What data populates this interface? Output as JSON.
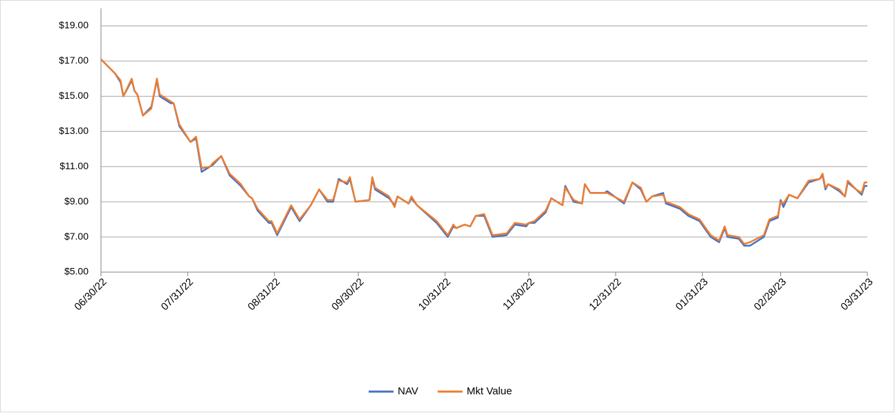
{
  "chart_data": {
    "type": "line",
    "x": [
      "06/30/22",
      "07/05/22",
      "07/07/22",
      "07/08/22",
      "07/11/22",
      "07/12/22",
      "07/13/22",
      "07/15/22",
      "07/18/22",
      "07/20/22",
      "07/21/22",
      "07/25/22",
      "07/26/22",
      "07/28/22",
      "08/01/22",
      "08/03/22",
      "08/05/22",
      "08/08/22",
      "08/09/22",
      "08/12/22",
      "08/15/22",
      "08/19/22",
      "08/22/22",
      "08/23/22",
      "08/25/22",
      "08/29/22",
      "08/30/22",
      "09/01/22",
      "09/06/22",
      "09/09/22",
      "09/13/22",
      "09/16/22",
      "09/19/22",
      "09/21/22",
      "09/23/22",
      "09/26/22",
      "09/27/22",
      "09/29/22",
      "10/04/22",
      "10/05/22",
      "10/06/22",
      "10/11/22",
      "10/13/22",
      "10/14/22",
      "10/18/22",
      "10/19/22",
      "10/21/22",
      "10/28/22",
      "11/01/22",
      "11/03/22",
      "11/04/22",
      "11/07/22",
      "11/09/22",
      "11/11/22",
      "11/14/22",
      "11/17/22",
      "11/22/22",
      "11/25/22",
      "11/29/22",
      "11/30/22",
      "12/02/22",
      "12/06/22",
      "12/08/22",
      "12/12/22",
      "12/13/22",
      "12/16/22",
      "12/19/22",
      "12/20/22",
      "12/22/22",
      "12/27/22",
      "12/28/22",
      "01/03/23",
      "01/06/23",
      "01/09/23",
      "01/11/23",
      "01/13/23",
      "01/17/23",
      "01/18/23",
      "01/23/23",
      "01/26/23",
      "01/30/23",
      "02/03/23",
      "02/06/23",
      "02/08/23",
      "02/09/23",
      "02/13/23",
      "02/15/23",
      "02/17/23",
      "02/22/23",
      "02/24/23",
      "02/27/23",
      "02/28/23",
      "03/01/23",
      "03/03/23",
      "03/06/23",
      "03/10/23",
      "03/14/23",
      "03/15/23",
      "03/16/23",
      "03/17/23",
      "03/21/23",
      "03/23/23",
      "03/24/23",
      "03/27/23",
      "03/29/23",
      "03/30/23",
      "03/31/23"
    ],
    "series": [
      {
        "name": "NAV",
        "color": "#4472c4",
        "values": [
          17.1,
          16.3,
          15.8,
          15.0,
          15.9,
          15.3,
          15.1,
          13.9,
          14.4,
          15.9,
          15.0,
          14.6,
          14.6,
          13.3,
          12.4,
          12.6,
          10.7,
          11.0,
          11.1,
          11.6,
          10.5,
          9.9,
          9.3,
          9.2,
          8.5,
          7.8,
          7.8,
          7.1,
          8.7,
          7.9,
          8.8,
          9.7,
          9.0,
          9.0,
          10.3,
          10.0,
          10.3,
          9.0,
          9.1,
          10.3,
          9.7,
          9.2,
          8.8,
          9.3,
          8.9,
          9.2,
          8.8,
          7.8,
          7.0,
          7.6,
          7.5,
          7.7,
          7.6,
          8.2,
          8.2,
          7.0,
          7.1,
          7.7,
          7.6,
          7.8,
          7.8,
          8.4,
          9.2,
          8.8,
          9.9,
          9.0,
          8.9,
          10.0,
          9.5,
          9.5,
          9.6,
          8.9,
          10.1,
          9.7,
          9.0,
          9.3,
          9.5,
          8.9,
          8.6,
          8.2,
          7.9,
          7.0,
          6.7,
          7.5,
          7.0,
          6.9,
          6.5,
          6.5,
          7.0,
          7.9,
          8.1,
          9.1,
          8.7,
          9.4,
          9.2,
          10.1,
          10.3,
          10.5,
          9.7,
          10.0,
          9.6,
          9.3,
          10.1,
          9.7,
          9.4,
          9.9,
          9.9
        ]
      },
      {
        "name": "Mkt Value",
        "color": "#ed7d31",
        "values": [
          17.1,
          16.3,
          15.9,
          15.0,
          16.0,
          15.3,
          15.1,
          13.9,
          14.3,
          16.0,
          15.1,
          14.7,
          14.6,
          13.4,
          12.4,
          12.7,
          10.9,
          11.0,
          11.2,
          11.6,
          10.6,
          10.0,
          9.3,
          9.2,
          8.6,
          7.9,
          7.9,
          7.2,
          8.8,
          8.0,
          8.8,
          9.7,
          9.1,
          9.1,
          10.2,
          10.1,
          10.4,
          9.0,
          9.1,
          10.4,
          9.8,
          9.3,
          8.7,
          9.3,
          8.9,
          9.3,
          8.8,
          7.9,
          7.1,
          7.7,
          7.5,
          7.7,
          7.6,
          8.2,
          8.3,
          7.1,
          7.2,
          7.8,
          7.7,
          7.8,
          7.9,
          8.5,
          9.2,
          8.8,
          9.8,
          9.1,
          8.9,
          10.0,
          9.5,
          9.5,
          9.5,
          9.0,
          10.1,
          9.8,
          9.0,
          9.3,
          9.4,
          9.0,
          8.7,
          8.3,
          8.0,
          7.1,
          6.8,
          7.6,
          7.1,
          7.0,
          6.6,
          6.7,
          7.1,
          8.0,
          8.2,
          9.0,
          8.9,
          9.4,
          9.2,
          10.2,
          10.3,
          10.6,
          9.8,
          10.0,
          9.7,
          9.3,
          10.2,
          9.7,
          9.5,
          10.1,
          10.1
        ]
      }
    ],
    "xlim": [
      "06/30/22",
      "03/31/23"
    ],
    "xticks": [
      "06/30/22",
      "07/31/22",
      "08/31/22",
      "09/30/22",
      "10/31/22",
      "11/30/22",
      "12/31/22",
      "01/31/23",
      "02/28/23",
      "03/31/23"
    ],
    "ylim": [
      5,
      20
    ],
    "yticks": [
      {
        "value": 5,
        "label": "$5.00"
      },
      {
        "value": 7,
        "label": "$7.00"
      },
      {
        "value": 9,
        "label": "$9.00"
      },
      {
        "value": 11,
        "label": "$11.00"
      },
      {
        "value": 13,
        "label": "$13.00"
      },
      {
        "value": 15,
        "label": "$15.00"
      },
      {
        "value": 17,
        "label": "$17.00"
      },
      {
        "value": 19,
        "label": "$19.00"
      }
    ],
    "grid": true,
    "legend": "bottom"
  }
}
